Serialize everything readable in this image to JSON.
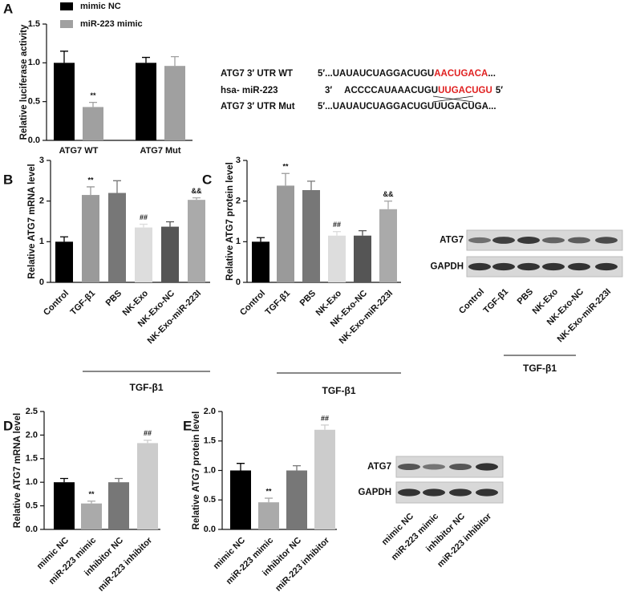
{
  "chart_data": [
    {
      "type": "bar",
      "panel": "A",
      "y_label": "Relative luciferase activity",
      "categories": [
        "ATG7 WT",
        "ATG7 Mut"
      ],
      "series": [
        {
          "name": "mimic NC",
          "color": "#000000",
          "values": [
            1.0,
            1.0
          ],
          "errors": [
            0.15,
            0.07
          ],
          "annotations": [
            null,
            null
          ]
        },
        {
          "name": "miR-223 mimic",
          "color": "#a0a0a0",
          "values": [
            0.43,
            0.96
          ],
          "errors": [
            0.06,
            0.12
          ],
          "annotations": [
            "**",
            null
          ]
        }
      ],
      "ylim": [
        0,
        1.5
      ],
      "yticks": [
        {
          "value": 0,
          "label": "0.0"
        },
        {
          "value": 0.5,
          "label": "0.5"
        },
        {
          "value": 1.0,
          "label": "1.0"
        },
        {
          "value": 1.5,
          "label": "1.5"
        }
      ]
    },
    {
      "type": "bar",
      "panel": "B",
      "y_label": "Relative ATG7 mRNA level",
      "categories": [
        "Control",
        "TGF-β1",
        "PBS",
        "NK-Exo",
        "NK-Exo-NC",
        "NK-Exo-miR-223I"
      ],
      "values": [
        1.0,
        2.15,
        2.2,
        1.35,
        1.37,
        2.03
      ],
      "errors": [
        0.12,
        0.2,
        0.3,
        0.08,
        0.12,
        0.05
      ],
      "colors": [
        "#000000",
        "#9a9a9a",
        "#777777",
        "#dddddd",
        "#555555",
        "#aaaaaa"
      ],
      "annotations": [
        null,
        "**",
        null,
        "##",
        null,
        "&&"
      ],
      "group_label": "TGF-β1",
      "ylim": [
        0,
        3
      ],
      "yticks": [
        0,
        1,
        2,
        3
      ]
    },
    {
      "type": "bar",
      "panel": "C",
      "y_label": "Relative ATG7 protein level",
      "categories": [
        "Control",
        "TGF-β1",
        "PBS",
        "NK-Exo",
        "NK-Exo-NC",
        "NK-Exo-miR-223I"
      ],
      "values": [
        1.0,
        2.38,
        2.27,
        1.15,
        1.15,
        1.8
      ],
      "errors": [
        0.1,
        0.3,
        0.22,
        0.1,
        0.12,
        0.2
      ],
      "colors": [
        "#000000",
        "#9a9a9a",
        "#777777",
        "#dddddd",
        "#555555",
        "#aaaaaa"
      ],
      "annotations": [
        null,
        "**",
        null,
        "##",
        null,
        "&&"
      ],
      "group_label": "TGF-β1",
      "ylim": [
        0,
        3
      ],
      "yticks": [
        0,
        1,
        2,
        3
      ]
    },
    {
      "type": "bar",
      "panel": "D",
      "y_label": "Relative ATG7 mRNA level",
      "categories": [
        "mimic NC",
        "miR-223 mimic",
        "inhibitor NC",
        "miR-223 inhibitor"
      ],
      "values": [
        1.0,
        0.55,
        1.0,
        1.83
      ],
      "errors": [
        0.08,
        0.05,
        0.08,
        0.06
      ],
      "colors": [
        "#000000",
        "#aaaaaa",
        "#777777",
        "#cccccc"
      ],
      "annotations": [
        null,
        "**",
        null,
        "##"
      ],
      "ylim": [
        0,
        2.5
      ],
      "yticks": [
        {
          "value": 0,
          "label": "0.0"
        },
        {
          "value": 0.5,
          "label": "0.5"
        },
        {
          "value": 1.0,
          "label": "1.0"
        },
        {
          "value": 1.5,
          "label": "1.5"
        },
        {
          "value": 2.0,
          "label": "2.0"
        },
        {
          "value": 2.5,
          "label": "2.5"
        }
      ]
    },
    {
      "type": "bar",
      "panel": "E",
      "y_label": "Relative ATG7 protein level",
      "categories": [
        "mimic NC",
        "miR-223 mimic",
        "inhibitor NC",
        "miR-223 inhibitor"
      ],
      "values": [
        1.0,
        0.46,
        1.0,
        1.69
      ],
      "errors": [
        0.12,
        0.07,
        0.08,
        0.08
      ],
      "colors": [
        "#000000",
        "#aaaaaa",
        "#777777",
        "#cccccc"
      ],
      "annotations": [
        null,
        "**",
        null,
        "##"
      ],
      "ylim": [
        0,
        2.0
      ],
      "yticks": [
        {
          "value": 0,
          "label": "0.0"
        },
        {
          "value": 0.5,
          "label": "0.5"
        },
        {
          "value": 1.0,
          "label": "1.0"
        },
        {
          "value": 1.5,
          "label": "1.5"
        },
        {
          "value": 2.0,
          "label": "2.0"
        }
      ]
    }
  ],
  "sequence": {
    "rows": [
      {
        "label": "ATG7 3′ UTR WT",
        "parts": [
          "5′...UAUAUCUAGGACUGU",
          "AACUGACA",
          "..."
        ]
      },
      {
        "label": "hsa- miR-223",
        "parts": [
          "3′",
          "ACCCCAUAAACUGU",
          "UUGACUGU",
          "5′"
        ]
      },
      {
        "label": "ATG7 3′ UTR Mut",
        "parts": [
          "5′...UAUAUCUAGGACUGUUUGACUGA..."
        ]
      }
    ]
  },
  "blot_c": {
    "rows": [
      "ATG7",
      "GAPDH"
    ]
  },
  "blot_e": {
    "rows": [
      "ATG7",
      "GAPDH"
    ]
  }
}
